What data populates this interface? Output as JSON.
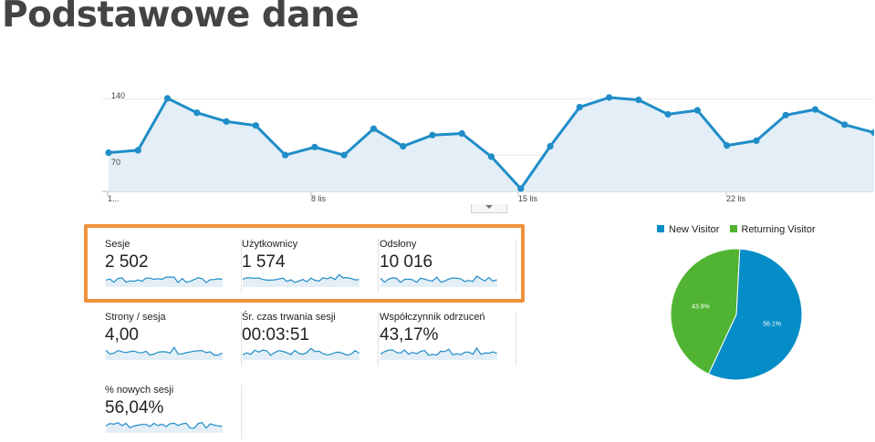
{
  "page_title": "Podstawowe dane",
  "main_chart": {
    "type": "line",
    "y_ticks": [
      "140",
      "70"
    ],
    "x_ticks": [
      "1...",
      "8 lis",
      "15 lis",
      "22 lis"
    ],
    "color": "#1f8dc8",
    "fill": "#e3eef6",
    "values": [
      73,
      76,
      141,
      123,
      112,
      107,
      70,
      80,
      70,
      103,
      81,
      95,
      97,
      68,
      28,
      81,
      130,
      142,
      139,
      121,
      126,
      82,
      88,
      120,
      127,
      108,
      98
    ]
  },
  "metrics": [
    {
      "label": "Sesje",
      "value": "2 502"
    },
    {
      "label": "Użytkownicy",
      "value": "1 574"
    },
    {
      "label": "Odsłony",
      "value": "10 016"
    },
    {
      "label": "Strony / sesja",
      "value": "4,00"
    },
    {
      "label": "Śr. czas trwania sesji",
      "value": "00:03:51"
    },
    {
      "label": "Współczynnik odrzuceń",
      "value": "43,17%"
    },
    {
      "label": "% nowych sesji",
      "value": "56,04%"
    }
  ],
  "chart_data": {
    "type": "pie",
    "slices": [
      {
        "label": "New Visitor",
        "value": 56.1,
        "display": "56.1%",
        "color": "#058dc7"
      },
      {
        "label": "Returning Visitor",
        "value": 43.9,
        "display": "43.9%",
        "color": "#50b432"
      }
    ]
  },
  "highlight_color": "#f0923b"
}
